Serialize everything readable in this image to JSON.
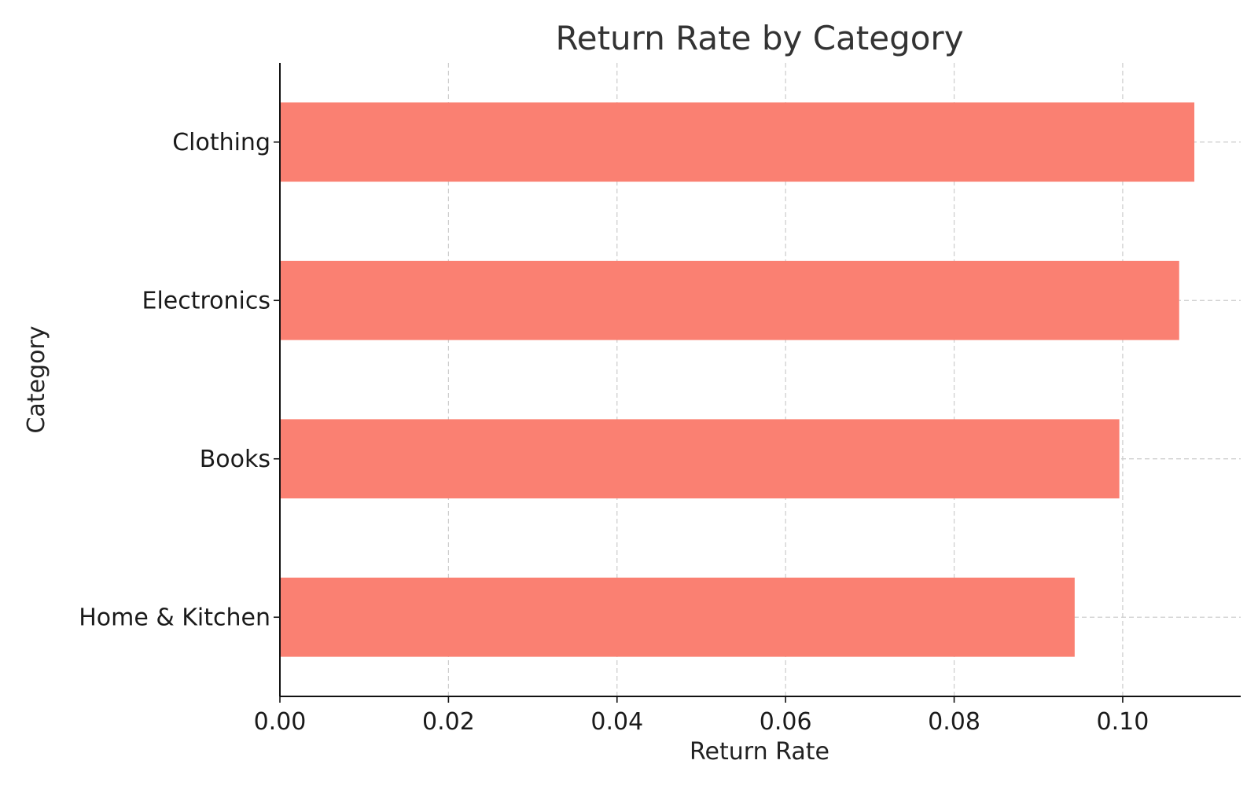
{
  "chart_data": {
    "type": "bar",
    "orientation": "horizontal",
    "title": "Return Rate by Category",
    "xlabel": "Return Rate",
    "ylabel": "Category",
    "categories": [
      "Clothing",
      "Electronics",
      "Books",
      "Home & Kitchen"
    ],
    "values": [
      0.1085,
      0.1067,
      0.0996,
      0.0943
    ],
    "xlim": [
      0.0,
      0.114
    ],
    "xticks": [
      0.0,
      0.02,
      0.04,
      0.06,
      0.08,
      0.1
    ],
    "xtick_labels": [
      "0.00",
      "0.02",
      "0.04",
      "0.06",
      "0.08",
      "0.10"
    ],
    "grid": true,
    "bar_color": "#fa8072"
  }
}
